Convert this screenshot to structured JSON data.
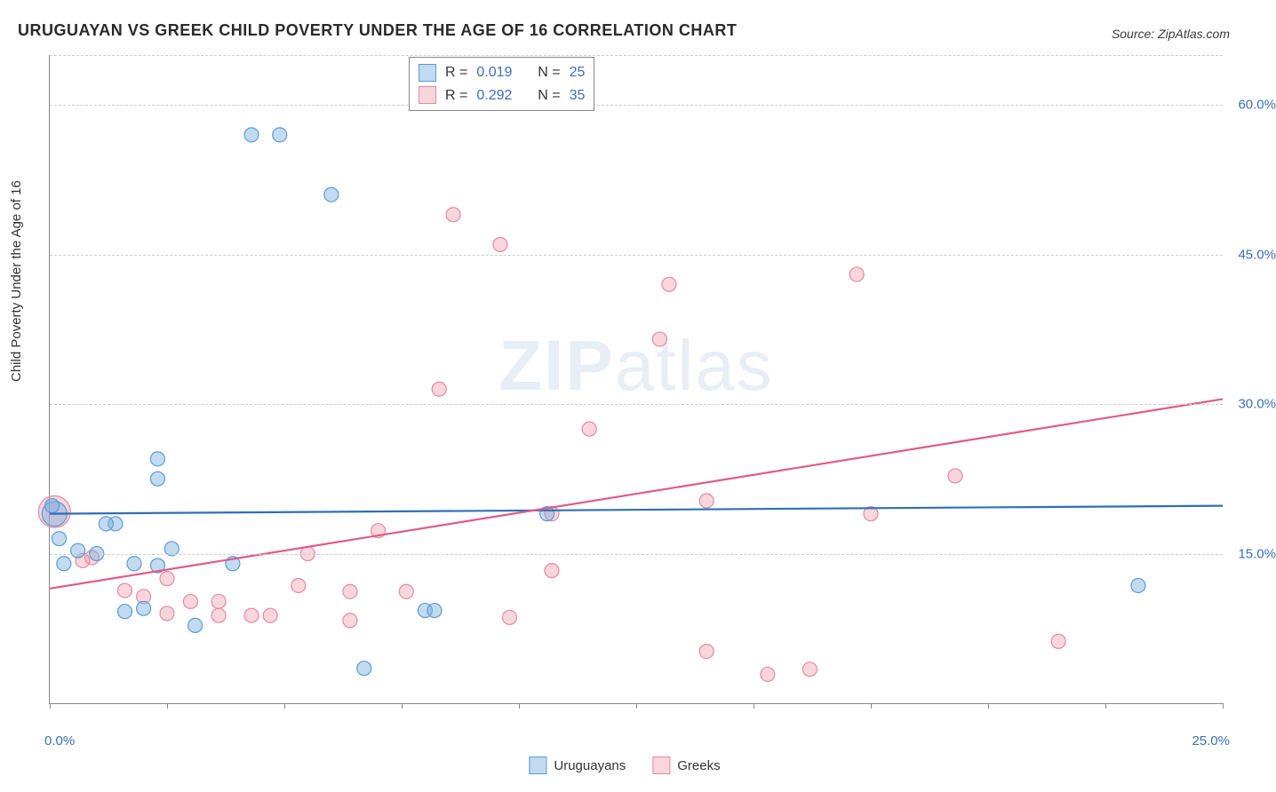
{
  "title": "URUGUAYAN VS GREEK CHILD POVERTY UNDER THE AGE OF 16 CORRELATION CHART",
  "source": "Source: ZipAtlas.com",
  "y_axis_label": "Child Poverty Under the Age of 16",
  "watermark": {
    "bold": "ZIP",
    "light": "atlas"
  },
  "chart": {
    "type": "scatter",
    "background_color": "#ffffff",
    "grid_color": "#cccccc",
    "axis_color": "#888888",
    "tick_label_color": "#3a6fb7",
    "xlim": [
      0,
      25
    ],
    "ylim": [
      0,
      65
    ],
    "x_ticks": [
      0,
      2.5,
      5,
      7.5,
      10,
      12.5,
      15,
      17.5,
      20,
      22.5,
      25
    ],
    "x_tick_labels": {
      "0": "0.0%",
      "25": "25.0%"
    },
    "y_gridlines": [
      15,
      30,
      45,
      60,
      65
    ],
    "y_tick_labels": {
      "15": "15.0%",
      "30": "30.0%",
      "45": "45.0%",
      "60": "60.0%"
    },
    "marker_radius": 8,
    "marker_stroke_width": 1.2,
    "line_width": 2.2,
    "series": [
      {
        "name": "Uruguayans",
        "fill_color": "rgba(120,175,225,0.45)",
        "stroke_color": "#5a9bd5",
        "line_color": "#2e6fb7",
        "R_label": "R =",
        "R_value": "0.019",
        "N_label": "N =",
        "N_value": "25",
        "trend": {
          "x1": 0,
          "y1": 19.0,
          "x2": 25,
          "y2": 19.8
        },
        "points": [
          {
            "x": 4.3,
            "y": 57,
            "r": 8
          },
          {
            "x": 4.9,
            "y": 57,
            "r": 8
          },
          {
            "x": 6.0,
            "y": 51,
            "r": 8
          },
          {
            "x": 2.3,
            "y": 24.5,
            "r": 8
          },
          {
            "x": 2.3,
            "y": 22.5,
            "r": 8
          },
          {
            "x": 10.6,
            "y": 19,
            "r": 8
          },
          {
            "x": 0.1,
            "y": 19,
            "r": 14
          },
          {
            "x": 0.2,
            "y": 16.5,
            "r": 8
          },
          {
            "x": 1.4,
            "y": 18,
            "r": 8
          },
          {
            "x": 1.2,
            "y": 18,
            "r": 8
          },
          {
            "x": 0.3,
            "y": 14.0,
            "r": 8
          },
          {
            "x": 0.6,
            "y": 15.3,
            "r": 8
          },
          {
            "x": 1.0,
            "y": 15.0,
            "r": 8
          },
          {
            "x": 2.6,
            "y": 15.5,
            "r": 8
          },
          {
            "x": 1.8,
            "y": 14.0,
            "r": 8
          },
          {
            "x": 3.9,
            "y": 14.0,
            "r": 8
          },
          {
            "x": 2.3,
            "y": 13.8,
            "r": 8
          },
          {
            "x": 1.6,
            "y": 9.2,
            "r": 8
          },
          {
            "x": 3.1,
            "y": 7.8,
            "r": 8
          },
          {
            "x": 8.0,
            "y": 9.3,
            "r": 8
          },
          {
            "x": 8.2,
            "y": 9.3,
            "r": 8
          },
          {
            "x": 6.7,
            "y": 3.5,
            "r": 8
          },
          {
            "x": 23.2,
            "y": 11.8,
            "r": 8
          },
          {
            "x": 0.05,
            "y": 19.8,
            "r": 8
          },
          {
            "x": 2.0,
            "y": 9.5,
            "r": 8
          }
        ]
      },
      {
        "name": "Greeks",
        "fill_color": "rgba(240,150,170,0.40)",
        "stroke_color": "#e38ba0",
        "line_color": "#e05a8a",
        "R_label": "R =",
        "R_value": "0.292",
        "N_label": "N =",
        "N_value": "35",
        "trend": {
          "x1": 0,
          "y1": 11.5,
          "x2": 25,
          "y2": 30.5
        },
        "points": [
          {
            "x": 8.6,
            "y": 49,
            "r": 8
          },
          {
            "x": 9.6,
            "y": 46,
            "r": 8
          },
          {
            "x": 13.2,
            "y": 42,
            "r": 8
          },
          {
            "x": 17.2,
            "y": 43,
            "r": 8
          },
          {
            "x": 13.0,
            "y": 36.5,
            "r": 8
          },
          {
            "x": 8.3,
            "y": 31.5,
            "r": 8
          },
          {
            "x": 11.5,
            "y": 27.5,
            "r": 8
          },
          {
            "x": 19.3,
            "y": 22.8,
            "r": 8
          },
          {
            "x": 14.0,
            "y": 20.3,
            "r": 8
          },
          {
            "x": 17.5,
            "y": 19.0,
            "r": 8
          },
          {
            "x": 10.7,
            "y": 19.0,
            "r": 8
          },
          {
            "x": 7.0,
            "y": 17.3,
            "r": 8
          },
          {
            "x": 0.1,
            "y": 19.2,
            "r": 18
          },
          {
            "x": 0.9,
            "y": 14.6,
            "r": 8
          },
          {
            "x": 0.7,
            "y": 14.3,
            "r": 8
          },
          {
            "x": 5.5,
            "y": 15.0,
            "r": 8
          },
          {
            "x": 1.6,
            "y": 11.3,
            "r": 8
          },
          {
            "x": 2.0,
            "y": 10.7,
            "r": 8
          },
          {
            "x": 2.5,
            "y": 9.0,
            "r": 8
          },
          {
            "x": 3.0,
            "y": 10.2,
            "r": 8
          },
          {
            "x": 3.6,
            "y": 10.2,
            "r": 8
          },
          {
            "x": 3.6,
            "y": 8.8,
            "r": 8
          },
          {
            "x": 4.3,
            "y": 8.8,
            "r": 8
          },
          {
            "x": 4.7,
            "y": 8.8,
            "r": 8
          },
          {
            "x": 5.3,
            "y": 11.8,
            "r": 8
          },
          {
            "x": 6.4,
            "y": 11.2,
            "r": 8
          },
          {
            "x": 7.6,
            "y": 11.2,
            "r": 8
          },
          {
            "x": 6.4,
            "y": 8.3,
            "r": 8
          },
          {
            "x": 9.8,
            "y": 8.6,
            "r": 8
          },
          {
            "x": 10.7,
            "y": 13.3,
            "r": 8
          },
          {
            "x": 14.0,
            "y": 5.2,
            "r": 8
          },
          {
            "x": 15.3,
            "y": 2.9,
            "r": 8
          },
          {
            "x": 16.2,
            "y": 3.4,
            "r": 8
          },
          {
            "x": 21.5,
            "y": 6.2,
            "r": 8
          },
          {
            "x": 2.5,
            "y": 12.5,
            "r": 8
          }
        ]
      }
    ]
  }
}
